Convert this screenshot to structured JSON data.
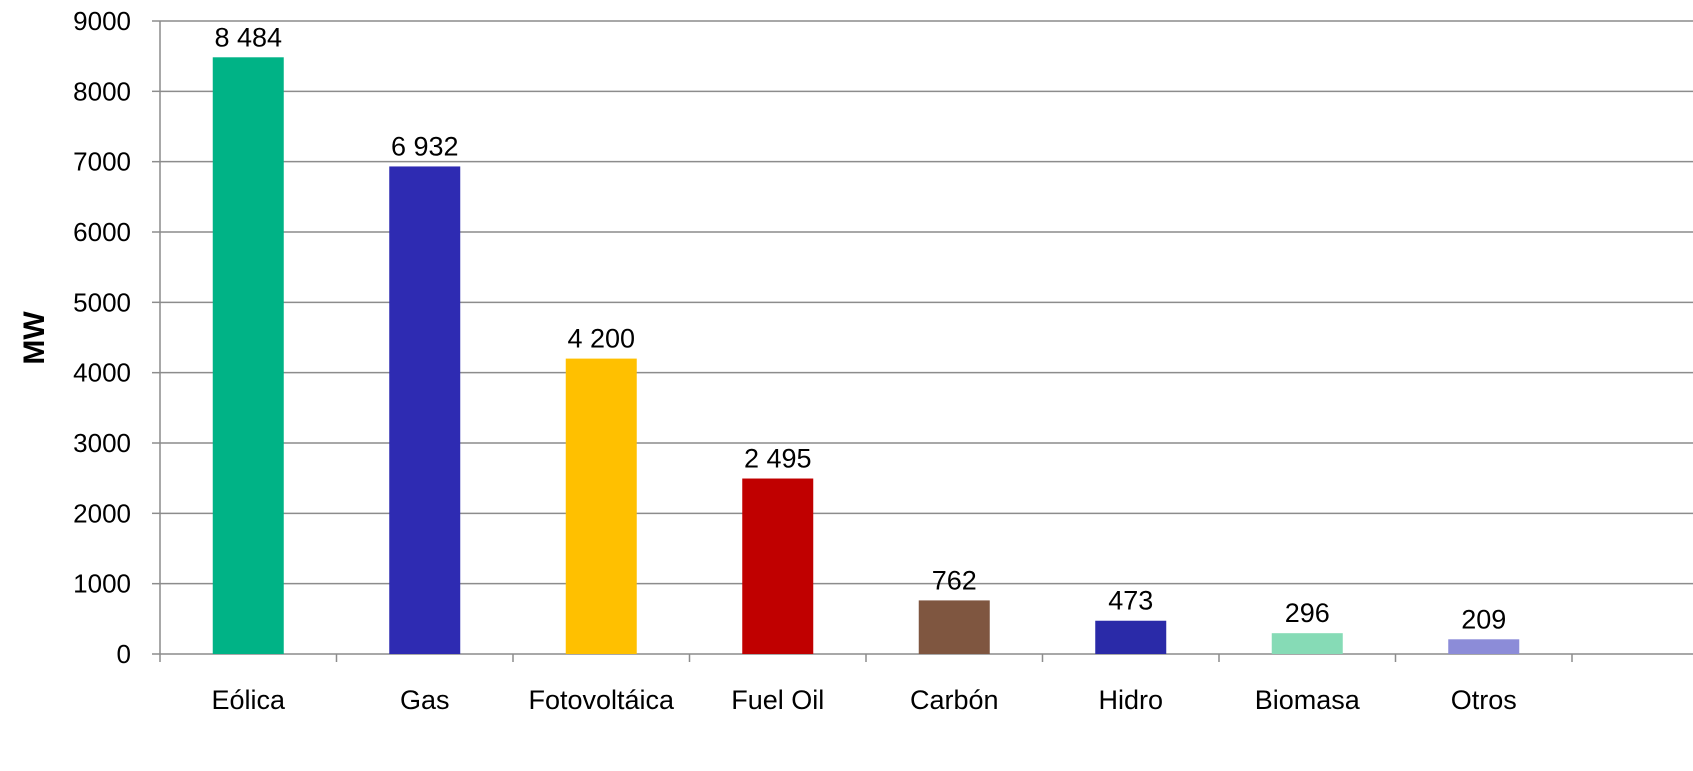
{
  "chart_data": {
    "type": "bar",
    "title": "",
    "xlabel": "",
    "ylabel": "MW",
    "ylim": [
      0,
      9000
    ],
    "yticks": [
      0,
      1000,
      2000,
      3000,
      4000,
      5000,
      6000,
      7000,
      8000,
      9000
    ],
    "grid": true,
    "categories": [
      "Eólica",
      "Gas",
      "Fotovoltáica",
      "Fuel Oil",
      "Carbón",
      "Hidro",
      "Biomasa",
      "Otros"
    ],
    "values": [
      8484,
      6932,
      4200,
      2495,
      762,
      473,
      296,
      209
    ],
    "data_labels": [
      "8 484",
      "6 932",
      "4 200",
      "2 495",
      "762",
      "473",
      "296",
      "209"
    ],
    "colors": [
      "#00b386",
      "#2e2bb2",
      "#ffc000",
      "#c00000",
      "#7f5640",
      "#2a2aa8",
      "#86dbb6",
      "#8c8cd8"
    ]
  }
}
